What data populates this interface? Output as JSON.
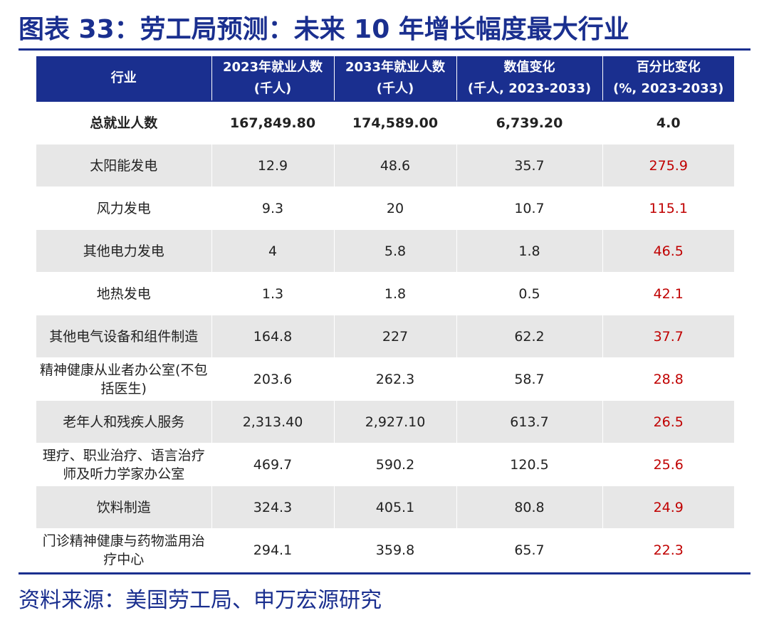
{
  "title": "图表 33：劳工局预测：未来 10 年增长幅度最大行业",
  "table": {
    "headers": [
      {
        "line1": "行业",
        "line2": ""
      },
      {
        "line1": "2023年就业人数",
        "line2": "(千人)"
      },
      {
        "line1": "2033年就业人数",
        "line2": "(千人)"
      },
      {
        "line1": "数值变化",
        "line2": "(千人, 2023-2033)"
      },
      {
        "line1": "百分比变化",
        "line2": "(%, 2023-2033)"
      }
    ],
    "rows": [
      {
        "industry": "总就业人数",
        "emp_2023": "167,849.80",
        "emp_2033": "174,589.00",
        "change": "6,739.20",
        "pct": "4.0"
      },
      {
        "industry": "太阳能发电",
        "emp_2023": "12.9",
        "emp_2033": "48.6",
        "change": "35.7",
        "pct": "275.9"
      },
      {
        "industry": "风力发电",
        "emp_2023": "9.3",
        "emp_2033": "20",
        "change": "10.7",
        "pct": "115.1"
      },
      {
        "industry": "其他电力发电",
        "emp_2023": "4",
        "emp_2033": "5.8",
        "change": "1.8",
        "pct": "46.5"
      },
      {
        "industry": "地热发电",
        "emp_2023": "1.3",
        "emp_2033": "1.8",
        "change": "0.5",
        "pct": "42.1"
      },
      {
        "industry": "其他电气设备和组件制造",
        "emp_2023": "164.8",
        "emp_2033": "227",
        "change": "62.2",
        "pct": "37.7"
      },
      {
        "industry": "精神健康从业者办公室(不包括医生)",
        "emp_2023": "203.6",
        "emp_2033": "262.3",
        "change": "58.7",
        "pct": "28.8"
      },
      {
        "industry": "老年人和残疾人服务",
        "emp_2023": "2,313.40",
        "emp_2033": "2,927.10",
        "change": "613.7",
        "pct": "26.5"
      },
      {
        "industry": "理疗、职业治疗、语言治疗师及听力学家办公室",
        "emp_2023": "469.7",
        "emp_2033": "590.2",
        "change": "120.5",
        "pct": "25.6"
      },
      {
        "industry": "饮料制造",
        "emp_2023": "324.3",
        "emp_2033": "405.1",
        "change": "80.8",
        "pct": "24.9"
      },
      {
        "industry": "门诊精神健康与药物滥用治疗中心",
        "emp_2023": "294.1",
        "emp_2033": "359.8",
        "change": "65.7",
        "pct": "22.3"
      }
    ]
  },
  "source": "资料来源：美国劳工局、申万宏源研究",
  "colors": {
    "brand_blue": "#1a2f8f",
    "pct_red": "#c00000",
    "stripe_gray": "#e7e7e7"
  }
}
